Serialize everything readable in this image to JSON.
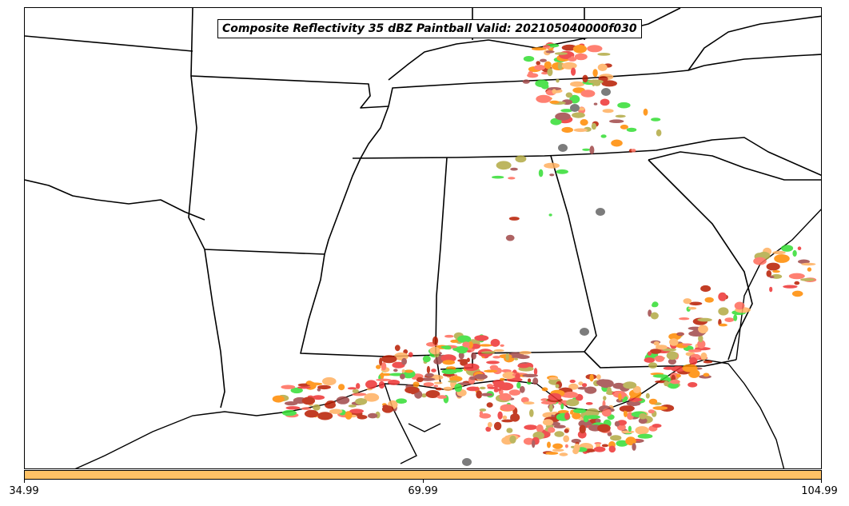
{
  "title": "Composite Reflectivity 35 dBZ Paintball Valid: 202105040000f030",
  "colorbar": {
    "color": "#ffc266",
    "ticks": [
      "34.99",
      "69.99",
      "104.99"
    ]
  },
  "colors": {
    "dark_red": "#a04848",
    "olive": "#b2aa44",
    "orange": "#ff8a00",
    "light_orange": "#ffb060",
    "red": "#ee3333",
    "dark_brick": "#b81c00",
    "green": "#33dd33",
    "gray": "#666666",
    "salmon": "#ff6a5a"
  }
}
